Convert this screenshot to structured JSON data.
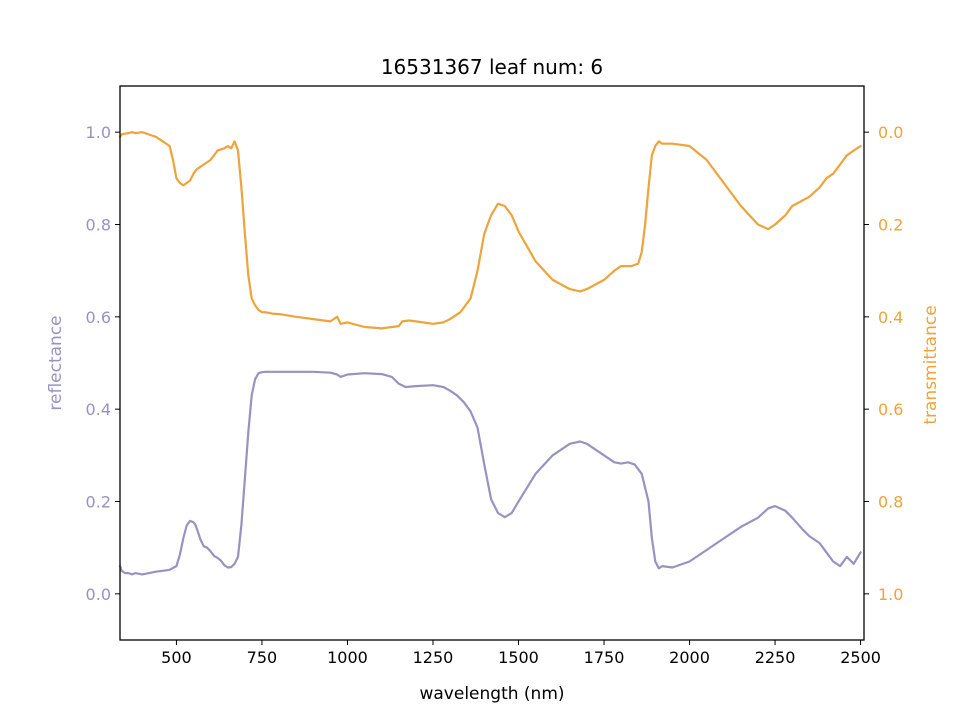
{
  "chart_data": {
    "type": "line",
    "title": "16531367 leaf num: 6",
    "xlabel": "wavelength (nm)",
    "ylabel_left": "reflectance",
    "ylabel_right": "transmittance",
    "xlim": [
      335,
      2510
    ],
    "ylim_left": [
      -0.1,
      1.1
    ],
    "ylim_right": [
      1.1,
      -0.1
    ],
    "right_axis_inverted": true,
    "grid": false,
    "x_ticks": [
      500,
      750,
      1000,
      1250,
      1500,
      1750,
      2000,
      2250,
      2500
    ],
    "y_ticks_left": [
      0.0,
      0.2,
      0.4,
      0.6,
      0.8,
      1.0
    ],
    "y_ticks_right": [
      0.0,
      0.2,
      0.4,
      0.6,
      0.8,
      1.0
    ],
    "series": [
      {
        "axis": "left",
        "color": "#9892c3",
        "x": [
          335,
          340,
          350,
          360,
          370,
          380,
          400,
          420,
          440,
          460,
          480,
          500,
          510,
          520,
          530,
          540,
          550,
          555,
          560,
          570,
          580,
          590,
          600,
          610,
          620,
          630,
          640,
          650,
          660,
          670,
          680,
          690,
          700,
          710,
          720,
          730,
          740,
          750,
          760,
          780,
          800,
          850,
          900,
          950,
          970,
          980,
          1000,
          1050,
          1100,
          1130,
          1150,
          1170,
          1200,
          1250,
          1280,
          1300,
          1320,
          1340,
          1360,
          1380,
          1400,
          1420,
          1440,
          1460,
          1480,
          1500,
          1550,
          1600,
          1650,
          1680,
          1700,
          1750,
          1780,
          1800,
          1820,
          1840,
          1860,
          1880,
          1890,
          1900,
          1910,
          1920,
          1950,
          2000,
          2050,
          2100,
          2150,
          2200,
          2230,
          2250,
          2280,
          2300,
          2330,
          2350,
          2380,
          2400,
          2420,
          2440,
          2460,
          2480,
          2500
        ],
        "y": [
          0.06,
          0.05,
          0.045,
          0.045,
          0.042,
          0.045,
          0.042,
          0.045,
          0.048,
          0.05,
          0.052,
          0.06,
          0.085,
          0.12,
          0.148,
          0.158,
          0.155,
          0.15,
          0.14,
          0.118,
          0.103,
          0.1,
          0.092,
          0.082,
          0.078,
          0.072,
          0.062,
          0.057,
          0.058,
          0.065,
          0.08,
          0.15,
          0.25,
          0.35,
          0.43,
          0.465,
          0.478,
          0.48,
          0.481,
          0.481,
          0.481,
          0.481,
          0.481,
          0.479,
          0.475,
          0.47,
          0.475,
          0.478,
          0.476,
          0.47,
          0.455,
          0.448,
          0.45,
          0.452,
          0.448,
          0.44,
          0.43,
          0.415,
          0.395,
          0.36,
          0.28,
          0.205,
          0.175,
          0.166,
          0.175,
          0.2,
          0.26,
          0.3,
          0.325,
          0.33,
          0.325,
          0.3,
          0.285,
          0.282,
          0.285,
          0.28,
          0.26,
          0.2,
          0.12,
          0.07,
          0.055,
          0.06,
          0.057,
          0.07,
          0.095,
          0.12,
          0.145,
          0.165,
          0.185,
          0.19,
          0.18,
          0.165,
          0.14,
          0.125,
          0.11,
          0.09,
          0.07,
          0.06,
          0.08,
          0.065,
          0.09
        ]
      },
      {
        "axis": "right",
        "color": "#eea33b",
        "x": [
          335,
          340,
          350,
          360,
          370,
          380,
          400,
          420,
          440,
          460,
          480,
          490,
          500,
          510,
          520,
          540,
          550,
          560,
          570,
          580,
          600,
          620,
          640,
          650,
          660,
          670,
          680,
          690,
          700,
          710,
          720,
          730,
          740,
          750,
          760,
          780,
          800,
          850,
          900,
          950,
          970,
          980,
          1000,
          1050,
          1100,
          1130,
          1150,
          1160,
          1180,
          1200,
          1250,
          1280,
          1300,
          1330,
          1360,
          1380,
          1400,
          1420,
          1440,
          1460,
          1480,
          1500,
          1550,
          1600,
          1650,
          1680,
          1700,
          1750,
          1780,
          1800,
          1830,
          1850,
          1860,
          1870,
          1880,
          1890,
          1900,
          1910,
          1920,
          1950,
          2000,
          2050,
          2100,
          2150,
          2200,
          2230,
          2250,
          2280,
          2300,
          2350,
          2380,
          2400,
          2420,
          2440,
          2460,
          2480,
          2500
        ],
        "y": [
          0.01,
          0.005,
          0.003,
          0.002,
          0.0,
          0.002,
          0.0,
          0.005,
          0.01,
          0.02,
          0.03,
          0.06,
          0.1,
          0.11,
          0.115,
          0.105,
          0.09,
          0.08,
          0.075,
          0.07,
          0.06,
          0.04,
          0.035,
          0.03,
          0.035,
          0.02,
          0.04,
          0.12,
          0.22,
          0.31,
          0.36,
          0.375,
          0.385,
          0.39,
          0.39,
          0.393,
          0.394,
          0.4,
          0.405,
          0.41,
          0.4,
          0.415,
          0.412,
          0.422,
          0.425,
          0.422,
          0.42,
          0.41,
          0.408,
          0.41,
          0.415,
          0.412,
          0.405,
          0.39,
          0.36,
          0.3,
          0.22,
          0.18,
          0.155,
          0.16,
          0.18,
          0.215,
          0.28,
          0.32,
          0.34,
          0.345,
          0.34,
          0.32,
          0.3,
          0.29,
          0.29,
          0.285,
          0.26,
          0.2,
          0.12,
          0.05,
          0.03,
          0.02,
          0.025,
          0.025,
          0.03,
          0.06,
          0.11,
          0.16,
          0.2,
          0.21,
          0.2,
          0.18,
          0.16,
          0.14,
          0.12,
          0.1,
          0.09,
          0.07,
          0.05,
          0.04,
          0.03
        ]
      }
    ]
  }
}
